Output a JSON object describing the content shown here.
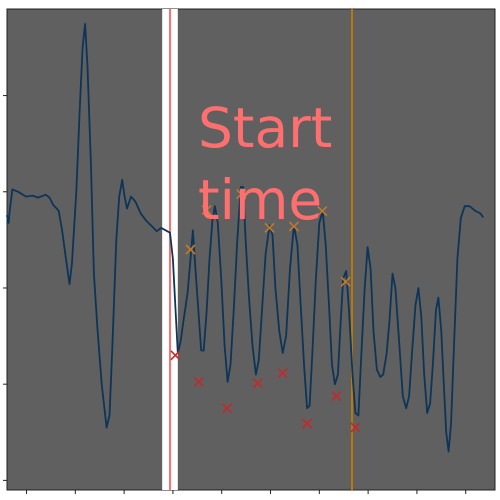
{
  "chart_data": {
    "type": "line",
    "title": "",
    "xlabel": "",
    "ylabel": "",
    "xlim": [
      0,
      100
    ],
    "ylim": [
      0,
      100
    ],
    "grid": false,
    "colors": {
      "background": "#606060",
      "trace": "#0d3558",
      "highlight_band": "#ffffff",
      "start_line": "#ff6f6f",
      "end_line": "#b8790a",
      "peak_marker": "#c27a2c",
      "trough_marker": "#c62828",
      "annotation_text": "#ff6f6f"
    },
    "annotation": {
      "label": "Start time",
      "line1": "Start",
      "line2": "time"
    },
    "highlight_band_x": [
      31.8,
      35.0
    ],
    "start_line_x": 33.4,
    "end_line_x": 70.7,
    "series": [
      {
        "values": [
          [
            0.0,
            57.0
          ],
          [
            0.3,
            55.5
          ],
          [
            0.6,
            58.4
          ],
          [
            1.1,
            62.5
          ],
          [
            2.3,
            62.0
          ],
          [
            3.9,
            61.0
          ],
          [
            5.2,
            61.2
          ],
          [
            6.4,
            60.8
          ],
          [
            7.9,
            61.4
          ],
          [
            8.7,
            60.8
          ],
          [
            9.5,
            59.2
          ],
          [
            10.1,
            58.6
          ],
          [
            10.6,
            58.0
          ],
          [
            11.3,
            54.0
          ],
          [
            12.1,
            48.0
          ],
          [
            12.8,
            42.8
          ],
          [
            13.3,
            47.0
          ],
          [
            14.2,
            62.0
          ],
          [
            14.9,
            79.0
          ],
          [
            15.5,
            92.0
          ],
          [
            16.0,
            96.9
          ],
          [
            16.5,
            88.0
          ],
          [
            17.2,
            68.0
          ],
          [
            17.8,
            45.0
          ],
          [
            18.5,
            34.0
          ],
          [
            19.4,
            22.0
          ],
          [
            20.4,
            13.0
          ],
          [
            21.0,
            15.5
          ],
          [
            21.6,
            30.0
          ],
          [
            22.4,
            52.0
          ],
          [
            23.0,
            61.0
          ],
          [
            23.6,
            64.5
          ],
          [
            24.1,
            61.0
          ],
          [
            24.6,
            58.5
          ],
          [
            25.4,
            61.0
          ],
          [
            26.3,
            60.0
          ],
          [
            27.4,
            57.5
          ],
          [
            28.5,
            56.0
          ],
          [
            29.5,
            55.0
          ],
          [
            30.7,
            53.8
          ],
          [
            31.6,
            54.5
          ],
          [
            32.5,
            54.0
          ],
          [
            33.4,
            53.5
          ],
          [
            34.0,
            48.0
          ],
          [
            34.5,
            38.0
          ],
          [
            35.0,
            28.5
          ],
          [
            35.6,
            31.0
          ],
          [
            36.2,
            35.5
          ],
          [
            37.0,
            41.0
          ],
          [
            37.6,
            48.0
          ],
          [
            38.1,
            54.0
          ],
          [
            38.6,
            46.0
          ],
          [
            39.3,
            36.0
          ],
          [
            39.8,
            29.0
          ],
          [
            40.3,
            29.0
          ],
          [
            40.9,
            37.0
          ],
          [
            41.5,
            48.0
          ],
          [
            42.1,
            56.0
          ],
          [
            42.6,
            59.0
          ],
          [
            43.2,
            55.5
          ],
          [
            43.9,
            44.0
          ],
          [
            44.6,
            30.0
          ],
          [
            45.2,
            22.5
          ],
          [
            45.8,
            26.0
          ],
          [
            46.5,
            38.0
          ],
          [
            47.2,
            52.0
          ],
          [
            47.9,
            63.0
          ],
          [
            48.4,
            63.0
          ],
          [
            48.9,
            52.0
          ],
          [
            49.6,
            40.0
          ],
          [
            50.3,
            30.0
          ],
          [
            51.0,
            24.0
          ],
          [
            51.6,
            27.0
          ],
          [
            52.3,
            38.0
          ],
          [
            53.0,
            49.0
          ],
          [
            53.8,
            55.0
          ],
          [
            54.4,
            53.0
          ],
          [
            55.0,
            42.0
          ],
          [
            55.8,
            33.0
          ],
          [
            56.5,
            28.5
          ],
          [
            57.2,
            32.0
          ],
          [
            58.0,
            46.0
          ],
          [
            58.8,
            55.0
          ],
          [
            59.5,
            51.0
          ],
          [
            60.2,
            38.0
          ],
          [
            60.9,
            25.5
          ],
          [
            61.5,
            17.0
          ],
          [
            62.0,
            17.5
          ],
          [
            62.6,
            29.0
          ],
          [
            63.3,
            44.0
          ],
          [
            64.0,
            55.5
          ],
          [
            64.7,
            58.0
          ],
          [
            65.3,
            51.0
          ],
          [
            66.0,
            38.0
          ],
          [
            66.6,
            26.0
          ],
          [
            67.2,
            22.0
          ],
          [
            67.8,
            24.0
          ],
          [
            68.3,
            33.5
          ],
          [
            68.9,
            44.0
          ],
          [
            69.5,
            45.5
          ],
          [
            70.1,
            37.0
          ],
          [
            70.8,
            24.0
          ],
          [
            71.4,
            16.0
          ],
          [
            72.0,
            15.5
          ],
          [
            72.6,
            28.0
          ],
          [
            73.3,
            42.0
          ],
          [
            73.9,
            50.5
          ],
          [
            74.5,
            46.0
          ],
          [
            75.1,
            33.0
          ],
          [
            75.8,
            25.0
          ],
          [
            76.5,
            23.5
          ],
          [
            77.1,
            24.0
          ],
          [
            77.8,
            28.5
          ],
          [
            78.4,
            35.5
          ],
          [
            79.0,
            45.0
          ],
          [
            79.6,
            42.0
          ],
          [
            80.4,
            30.0
          ],
          [
            81.1,
            19.5
          ],
          [
            81.8,
            17.0
          ],
          [
            82.4,
            19.5
          ],
          [
            83.0,
            28.5
          ],
          [
            83.7,
            38.5
          ],
          [
            84.3,
            42.0
          ],
          [
            84.9,
            36.0
          ],
          [
            85.5,
            24.0
          ],
          [
            86.1,
            16.0
          ],
          [
            86.7,
            18.0
          ],
          [
            87.3,
            26.5
          ],
          [
            87.9,
            37.5
          ],
          [
            88.4,
            40.0
          ],
          [
            89.0,
            33.0
          ],
          [
            89.5,
            22.0
          ],
          [
            90.0,
            12.0
          ],
          [
            90.5,
            8.0
          ],
          [
            91.0,
            14.0
          ],
          [
            91.6,
            30.0
          ],
          [
            92.3,
            48.0
          ],
          [
            93.0,
            56.5
          ],
          [
            93.8,
            59.0
          ],
          [
            94.8,
            59.0
          ],
          [
            96.0,
            58.0
          ],
          [
            97.0,
            57.5
          ],
          [
            97.5,
            56.8
          ]
        ]
      }
    ],
    "peaks": [
      [
        37.6,
        50.0
      ],
      [
        40.9,
        58.2
      ],
      [
        48.0,
        61.5
      ],
      [
        53.8,
        54.5
      ],
      [
        58.8,
        54.8
      ],
      [
        64.6,
        58.0
      ],
      [
        69.4,
        43.3
      ]
    ],
    "troughs": [
      [
        34.5,
        28.0
      ],
      [
        39.3,
        22.5
      ],
      [
        45.1,
        17.0
      ],
      [
        51.4,
        22.2
      ],
      [
        56.5,
        24.3
      ],
      [
        61.5,
        13.8
      ],
      [
        67.5,
        19.5
      ],
      [
        71.4,
        13.0
      ]
    ]
  }
}
